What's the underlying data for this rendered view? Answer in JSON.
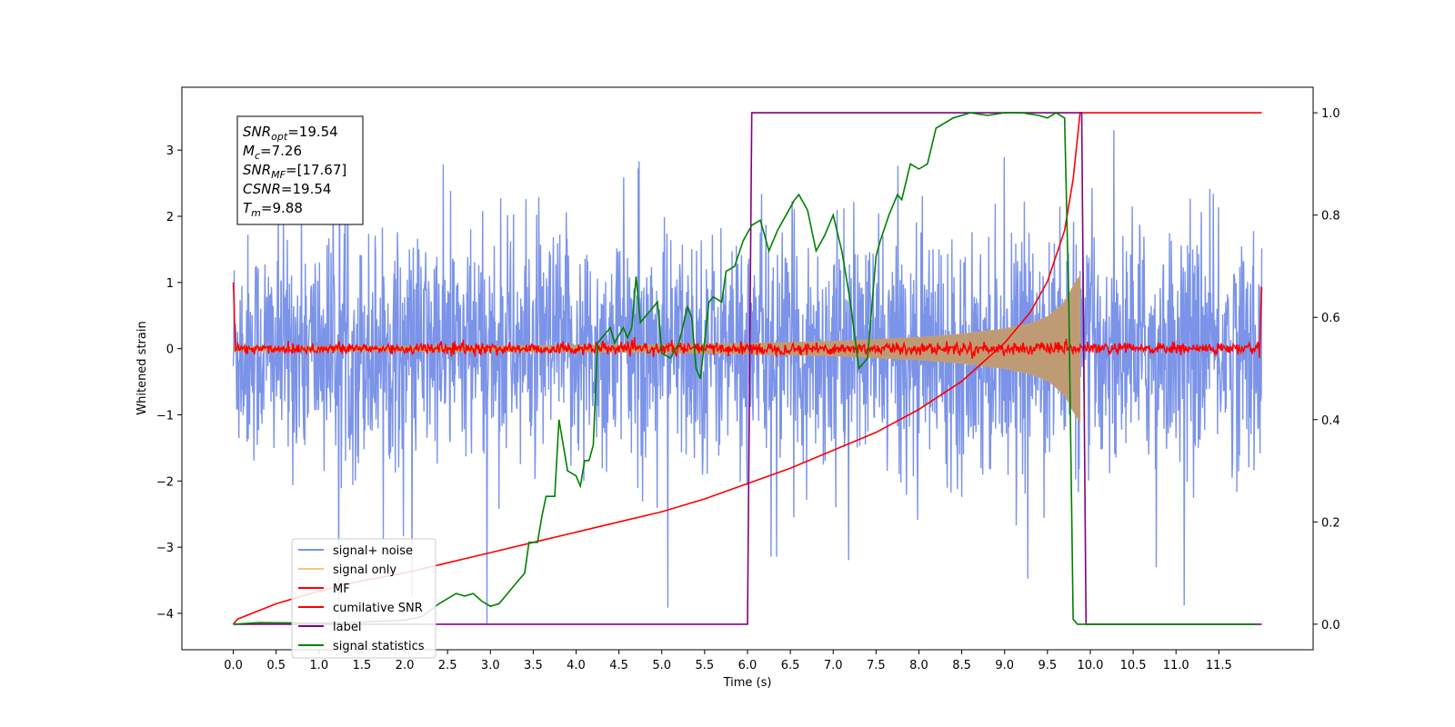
{
  "chart_data": {
    "type": "line",
    "xlabel": "Time (s)",
    "ylabel": "Whitened strain",
    "y2label": "",
    "xlim": [
      -0.6,
      12.6
    ],
    "ylim": [
      -4.55,
      3.95
    ],
    "y2lim": [
      -0.05,
      1.05
    ],
    "xticks": [
      "0.0",
      "0.5",
      "1.0",
      "1.5",
      "2.0",
      "2.5",
      "3.0",
      "3.5",
      "4.0",
      "4.5",
      "5.0",
      "5.5",
      "6.0",
      "6.5",
      "7.0",
      "7.5",
      "8.0",
      "8.5",
      "9.0",
      "9.5",
      "10.0",
      "10.5",
      "11.0",
      "11.5"
    ],
    "yticks": [
      "3",
      "2",
      "1",
      "0",
      "−1",
      "−2",
      "−3",
      "−4"
    ],
    "y2ticks": [
      "0.0",
      "0.2",
      "0.4",
      "0.6",
      "0.8",
      "1.0"
    ],
    "annotation": {
      "lines": [
        {
          "sym": "SNR",
          "sub": "opt",
          "value": "=19.54"
        },
        {
          "sym": "M",
          "sub": "c",
          "value": "=7.26"
        },
        {
          "sym": "SNR",
          "sub": "MF",
          "value": "=[17.67]"
        },
        {
          "sym": "CSNR",
          "sub": "",
          "value": "=19.54"
        },
        {
          "sym": "T",
          "sub": "m",
          "value": "=9.88"
        }
      ]
    },
    "legend_position": "lower-left",
    "series": [
      {
        "name": "signal+ noise",
        "color": "#7b93e8",
        "axis": "left",
        "kind": "noise",
        "x_range": [
          0,
          12
        ],
        "amplitude_typical": 1.3,
        "min_approx": -4.15,
        "max_approx": 3.3
      },
      {
        "name": "signal only",
        "color": "#f5c77e",
        "axis": "left",
        "kind": "chirp",
        "x_range": [
          0,
          9.88
        ],
        "envelope_x": [
          0.0,
          2.0,
          4.0,
          5.0,
          6.0,
          7.0,
          7.5,
          8.0,
          8.5,
          9.0,
          9.3,
          9.5,
          9.7,
          9.8,
          9.88
        ],
        "envelope_y": [
          0.03,
          0.04,
          0.05,
          0.06,
          0.08,
          0.11,
          0.14,
          0.17,
          0.22,
          0.3,
          0.38,
          0.48,
          0.7,
          0.95,
          1.1
        ]
      },
      {
        "name": "MF",
        "color": "#ff0000",
        "axis": "left",
        "kind": "mf_noise",
        "x_range": [
          0,
          12
        ],
        "edge_value": 1.0,
        "amplitude_typical": 0.06
      },
      {
        "name": "cumilative SNR",
        "color": "#ff0000",
        "axis": "right",
        "x": [
          0.0,
          0.05,
          0.5,
          1.0,
          1.5,
          2.0,
          2.5,
          3.0,
          3.5,
          4.0,
          4.5,
          5.0,
          5.5,
          6.0,
          6.5,
          7.0,
          7.5,
          8.0,
          8.5,
          9.0,
          9.3,
          9.5,
          9.7,
          9.8,
          9.88,
          12.0
        ],
        "y": [
          0.0,
          0.01,
          0.04,
          0.065,
          0.085,
          0.1,
          0.12,
          0.14,
          0.16,
          0.18,
          0.2,
          0.22,
          0.245,
          0.275,
          0.305,
          0.34,
          0.375,
          0.42,
          0.475,
          0.55,
          0.61,
          0.67,
          0.77,
          0.87,
          1.0,
          1.0
        ]
      },
      {
        "name": "label",
        "color": "#800080",
        "axis": "right",
        "x": [
          0.0,
          6.0,
          6.05,
          9.9,
          9.95,
          12.0
        ],
        "y": [
          0.0,
          0.0,
          1.0,
          1.0,
          0.0,
          0.0
        ]
      },
      {
        "name": "signal statistics",
        "color": "#008000",
        "axis": "right",
        "x": [
          0.0,
          0.3,
          1.0,
          1.5,
          2.0,
          2.2,
          2.4,
          2.6,
          2.7,
          2.8,
          2.9,
          3.0,
          3.1,
          3.2,
          3.3,
          3.4,
          3.45,
          3.55,
          3.6,
          3.65,
          3.7,
          3.75,
          3.8,
          3.9,
          4.0,
          4.05,
          4.1,
          4.15,
          4.2,
          4.25,
          4.3,
          4.4,
          4.45,
          4.55,
          4.6,
          4.65,
          4.7,
          4.75,
          4.85,
          4.95,
          5.0,
          5.1,
          5.2,
          5.3,
          5.35,
          5.4,
          5.45,
          5.55,
          5.6,
          5.7,
          5.75,
          5.85,
          5.95,
          6.05,
          6.15,
          6.25,
          6.35,
          6.45,
          6.55,
          6.6,
          6.7,
          6.8,
          6.9,
          7.0,
          7.1,
          7.2,
          7.3,
          7.4,
          7.5,
          7.55,
          7.65,
          7.75,
          7.8,
          7.9,
          8.0,
          8.1,
          8.2,
          8.4,
          8.6,
          8.8,
          9.0,
          9.2,
          9.4,
          9.5,
          9.6,
          9.7,
          9.75,
          9.8,
          9.85,
          9.9,
          9.95,
          10.0,
          10.5,
          11.0,
          11.5,
          11.95
        ],
        "y": [
          0.0,
          0.003,
          0.002,
          0.004,
          0.008,
          0.015,
          0.04,
          0.06,
          0.055,
          0.06,
          0.045,
          0.035,
          0.04,
          0.06,
          0.08,
          0.1,
          0.16,
          0.16,
          0.21,
          0.25,
          0.25,
          0.25,
          0.4,
          0.3,
          0.29,
          0.27,
          0.32,
          0.32,
          0.35,
          0.55,
          0.56,
          0.58,
          0.55,
          0.58,
          0.56,
          0.58,
          0.68,
          0.59,
          0.61,
          0.63,
          0.53,
          0.52,
          0.55,
          0.62,
          0.6,
          0.5,
          0.48,
          0.63,
          0.64,
          0.63,
          0.69,
          0.7,
          0.75,
          0.78,
          0.79,
          0.73,
          0.77,
          0.8,
          0.83,
          0.84,
          0.81,
          0.73,
          0.76,
          0.8,
          0.73,
          0.63,
          0.5,
          0.52,
          0.72,
          0.75,
          0.8,
          0.84,
          0.83,
          0.9,
          0.89,
          0.9,
          0.97,
          0.99,
          1.0,
          0.995,
          1.0,
          1.0,
          0.995,
          0.99,
          1.0,
          0.99,
          0.62,
          0.01,
          0.0,
          0.0,
          0.0,
          0.0,
          0.0,
          0.0,
          0.0,
          0.0
        ]
      }
    ]
  }
}
